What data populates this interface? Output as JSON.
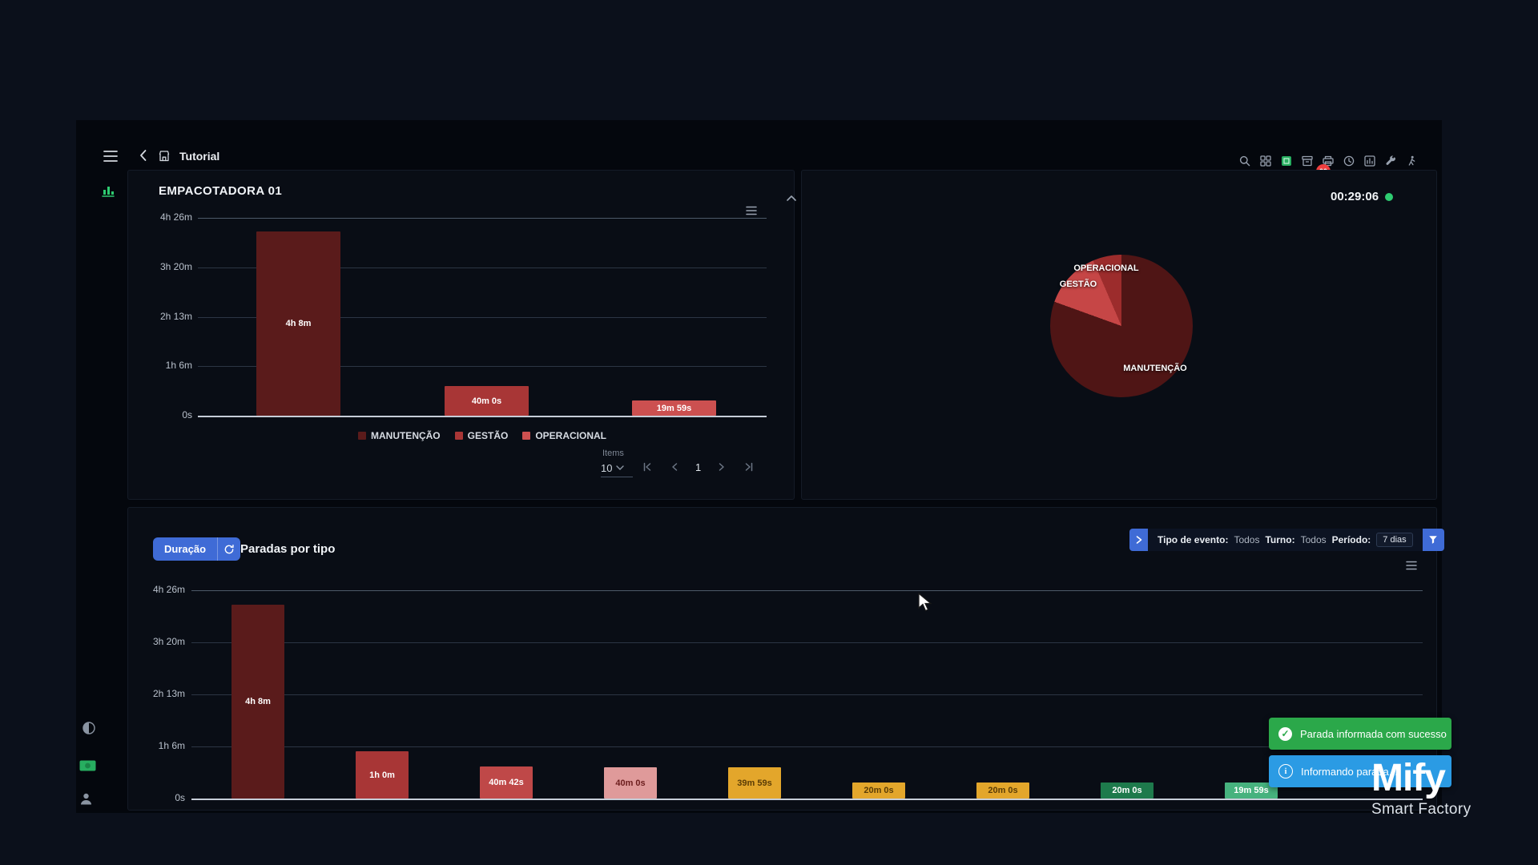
{
  "header": {
    "title": "Tutorial",
    "badge": "00",
    "icons": [
      "search-icon",
      "apps-grid-icon",
      "status-green-icon",
      "archive-icon",
      "printer-icon",
      "clock-icon",
      "chart-icon",
      "wrench-icon",
      "operator-icon"
    ]
  },
  "status": {
    "clock": "00:29:06"
  },
  "machine_panel": {
    "title": "EMPACOTADORA 01",
    "items_label": "Items",
    "page_size": "10",
    "page": "1"
  },
  "events_panel": {
    "mode_button": "Duração",
    "title": "Paradas por tipo",
    "filter": {
      "event_type_label": "Tipo de evento:",
      "event_type_value": "Todos",
      "shift_label": "Turno:",
      "shift_value": "Todos",
      "period_label": "Período:",
      "period_value": "7 dias"
    }
  },
  "toasts": [
    {
      "text": "Parada informada com sucesso",
      "color": "#2ba84a",
      "icon": "check-icon"
    },
    {
      "text": "Informando parada...",
      "color": "#2b9be4",
      "icon": "info-icon"
    }
  ],
  "brand": {
    "name": "Mify",
    "tagline": "Smart Factory"
  },
  "colors": {
    "accent_blue": "#3f6bd6",
    "status_green": "#2ecc71",
    "badge_red": "#ef3e3e",
    "toast_green": "#2ba84a",
    "toast_blue": "#2b9be4"
  },
  "chart_data": [
    {
      "type": "bar",
      "title": "EMPACOTADORA 01",
      "yticks": [
        "4h 26m",
        "3h 20m",
        "2h 13m",
        "1h 6m",
        "0s"
      ],
      "ymax_minutes": 266,
      "ylim": [
        0,
        266
      ],
      "grid": true,
      "legend_position": "bottom",
      "bars": [
        {
          "label": "4h 8m",
          "minutes": 248,
          "category": "MANUTENÇÃO",
          "color": "#5a1b1b",
          "label_color": "#ffffff"
        },
        {
          "label": "40m 0s",
          "minutes": 40,
          "category": "GESTÃO",
          "color": "#a83636",
          "label_color": "#ffffff"
        },
        {
          "label": "19m 59s",
          "minutes": 20,
          "category": "OPERACIONAL",
          "color": "#cc5050",
          "label_color": "#ffffff"
        }
      ],
      "legend": [
        {
          "label": "MANUTENÇÃO",
          "color": "#5a1b1b"
        },
        {
          "label": "GESTÃO",
          "color": "#a83636"
        },
        {
          "label": "OPERACIONAL",
          "color": "#cc5050"
        }
      ]
    },
    {
      "type": "pie",
      "slices": [
        {
          "label": "MANUTENÇÃO",
          "minutes": 248,
          "color": "#4f1515"
        },
        {
          "label": "GESTÃO",
          "minutes": 40,
          "color": "#c64646"
        },
        {
          "label": "OPERACIONAL",
          "minutes": 20,
          "color": "#9c2c2c"
        }
      ]
    },
    {
      "type": "bar",
      "title": "Paradas por tipo",
      "yticks": [
        "4h 26m",
        "3h 20m",
        "2h 13m",
        "1h 6m",
        "0s"
      ],
      "ymax_minutes": 266,
      "ylim": [
        0,
        266
      ],
      "grid": true,
      "bars": [
        {
          "label": "4h 8m",
          "minutes": 248,
          "color": "#5a1b1b",
          "label_color": "#ffffff"
        },
        {
          "label": "1h 0m",
          "minutes": 60,
          "color": "#a83636",
          "label_color": "#ffffff"
        },
        {
          "label": "40m 42s",
          "minutes": 40.7,
          "color": "#bf4848",
          "label_color": "#ffffff"
        },
        {
          "label": "40m 0s",
          "minutes": 40,
          "color": "#df9a9a",
          "label_color": "#6b1d1d"
        },
        {
          "label": "39m 59s",
          "minutes": 40,
          "color": "#e3a62b",
          "label_color": "#5a3c06"
        },
        {
          "label": "20m 0s",
          "minutes": 20,
          "color": "#e3a62b",
          "label_color": "#5a3c06"
        },
        {
          "label": "20m 0s",
          "minutes": 20,
          "color": "#e3a62b",
          "label_color": "#5a3c06"
        },
        {
          "label": "20m 0s",
          "minutes": 20,
          "color": "#1e7a4c",
          "label_color": "#ffffff"
        },
        {
          "label": "19m 59s",
          "minutes": 20,
          "color": "#46b27e",
          "label_color": "#ffffff"
        }
      ]
    }
  ]
}
